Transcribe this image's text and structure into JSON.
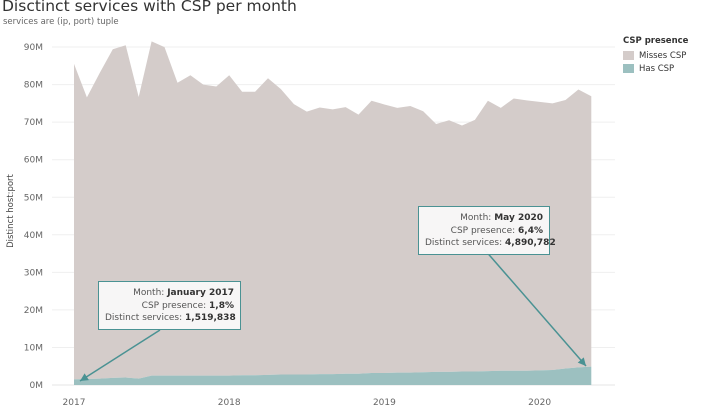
{
  "title": "Disctinct services with CSP per month",
  "subtitle": "services are (ip, port) tuple",
  "legend": {
    "title": "CSP presence",
    "items": [
      {
        "label": "Misses CSP",
        "color": "#d4ccca"
      },
      {
        "label": "Has CSP",
        "color": "#9cc0c0"
      }
    ]
  },
  "tooltips": [
    {
      "month_label": "Month:",
      "month": "January 2017",
      "csp_label": "CSP presence:",
      "csp": "1,8%",
      "services_label": "Distinct services:",
      "services": "1,519,838"
    },
    {
      "month_label": "Month:",
      "month": "May 2020",
      "csp_label": "CSP presence:",
      "csp": "6,4%",
      "services_label": "Distinct services:",
      "services": "4,890,782"
    }
  ],
  "chart_data": {
    "type": "area",
    "stacked": true,
    "title": "Disctinct services with CSP per month",
    "subtitle": "services are (ip, port) tuple",
    "xlabel": "",
    "ylabel": "Distinct host:port",
    "ylim": [
      0,
      95
    ],
    "y_unit": "M",
    "yticks": [
      "0M",
      "10M",
      "20M",
      "30M",
      "40M",
      "50M",
      "60M",
      "70M",
      "80M",
      "90M"
    ],
    "xticks": [
      "2017",
      "2018",
      "2019",
      "2020"
    ],
    "grid": true,
    "legend_position": "right",
    "x": [
      "2017-01",
      "2017-02",
      "2017-03",
      "2017-04",
      "2017-05",
      "2017-06",
      "2017-07",
      "2017-08",
      "2017-09",
      "2017-10",
      "2017-11",
      "2017-12",
      "2018-01",
      "2018-02",
      "2018-03",
      "2018-04",
      "2018-05",
      "2018-06",
      "2018-07",
      "2018-08",
      "2018-09",
      "2018-10",
      "2018-11",
      "2018-12",
      "2019-01",
      "2019-02",
      "2019-03",
      "2019-04",
      "2019-05",
      "2019-06",
      "2019-07",
      "2019-08",
      "2019-09",
      "2019-10",
      "2019-11",
      "2019-12",
      "2020-01",
      "2020-02",
      "2020-03",
      "2020-04",
      "2020-05"
    ],
    "series": [
      {
        "name": "Has CSP",
        "color": "#9cc0c0",
        "values": [
          1.5,
          1.6,
          1.7,
          1.9,
          2.0,
          1.7,
          2.5,
          2.5,
          2.5,
          2.5,
          2.5,
          2.5,
          2.5,
          2.6,
          2.6,
          2.7,
          2.8,
          2.8,
          2.8,
          2.9,
          2.9,
          3.0,
          3.0,
          3.2,
          3.2,
          3.3,
          3.3,
          3.4,
          3.5,
          3.5,
          3.6,
          3.6,
          3.7,
          3.8,
          3.8,
          3.8,
          3.9,
          4.0,
          4.4,
          4.7,
          4.9
        ]
      },
      {
        "name": "Misses CSP",
        "color": "#d4ccca",
        "values": [
          84,
          75,
          81.5,
          87.5,
          88.5,
          75,
          89,
          87.5,
          78,
          80,
          77.5,
          77,
          80,
          75.5,
          75.5,
          79,
          76,
          72,
          70,
          71,
          70.5,
          71,
          69,
          72.5,
          71.5,
          70.5,
          71,
          69.5,
          66,
          67,
          65.5,
          67,
          72,
          70,
          72.5,
          72,
          71.5,
          71,
          71.5,
          74,
          72
        ]
      }
    ],
    "total": [
      85.5,
      76.6,
      83.2,
      89.4,
      90.5,
      76.7,
      91.5,
      90.0,
      80.5,
      82.5,
      80.0,
      79.5,
      82.5,
      78.1,
      78.1,
      81.7,
      78.8,
      74.8,
      72.8,
      73.9,
      73.4,
      74.0,
      72.0,
      75.7,
      74.7,
      73.8,
      74.3,
      72.9,
      69.5,
      70.5,
      69.1,
      70.6,
      75.7,
      73.8,
      76.3,
      75.8,
      75.4,
      75.0,
      75.9,
      78.7,
      76.9
    ]
  }
}
